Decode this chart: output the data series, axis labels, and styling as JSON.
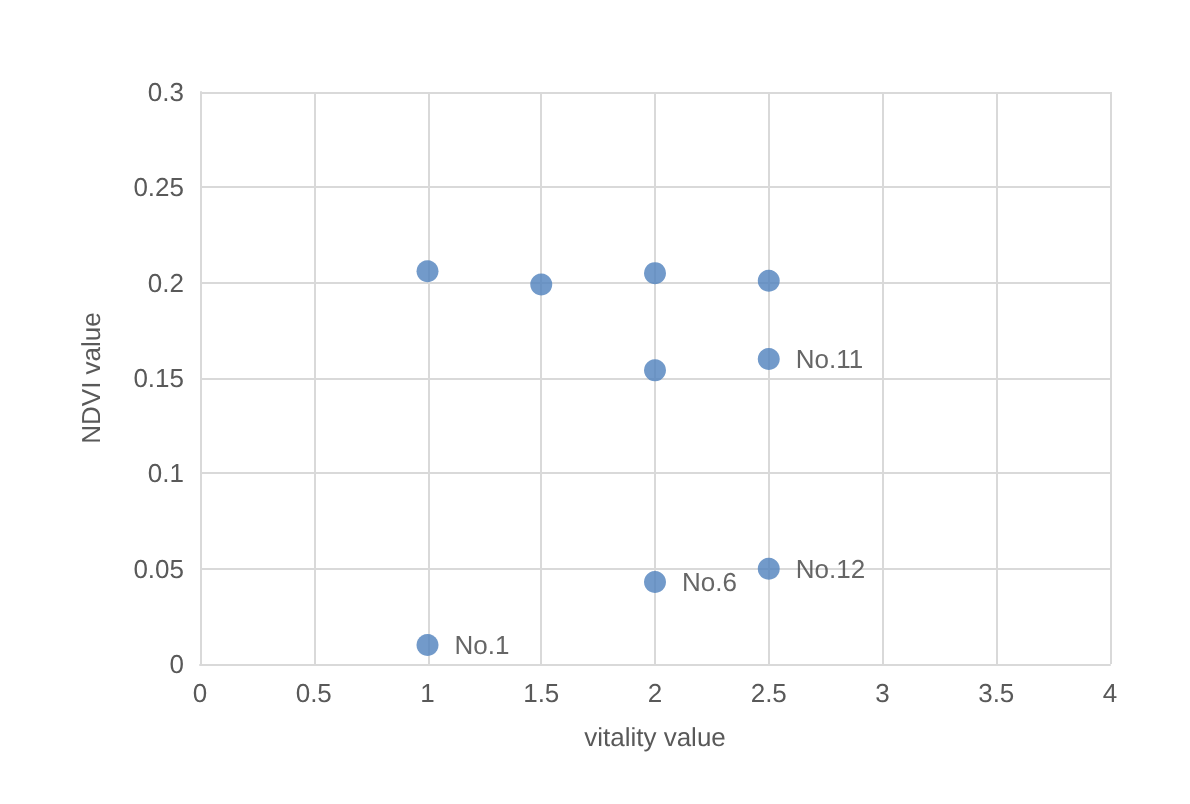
{
  "chart_data": {
    "type": "scatter",
    "xlabel": "vitality value",
    "ylabel": "NDVI value",
    "x": [
      1,
      1.5,
      2,
      2.5,
      2,
      2.5,
      2,
      2.5,
      1
    ],
    "series": [
      {
        "color": "#4f81bd",
        "values": [
          0.206,
          0.199,
          0.205,
          0.201,
          0.154,
          0.16,
          0.043,
          0.05,
          0.01
        ]
      }
    ],
    "xlim": [
      0,
      4
    ],
    "xticks": [
      0,
      0.5,
      1,
      1.5,
      2,
      2.5,
      3,
      3.5,
      4
    ],
    "ylim": [
      0,
      0.3
    ],
    "yticks": [
      0,
      0.05,
      0.1,
      0.15,
      0.2,
      0.25,
      0.3
    ],
    "grid": true,
    "marker": "circle",
    "annotations": [
      {
        "text": "No.11",
        "x": 2.5,
        "y": 0.16
      },
      {
        "text": "No.6",
        "x": 2,
        "y": 0.043
      },
      {
        "text": "No.12",
        "x": 2.5,
        "y": 0.05
      },
      {
        "text": "No.1",
        "x": 1,
        "y": 0.01
      }
    ]
  }
}
